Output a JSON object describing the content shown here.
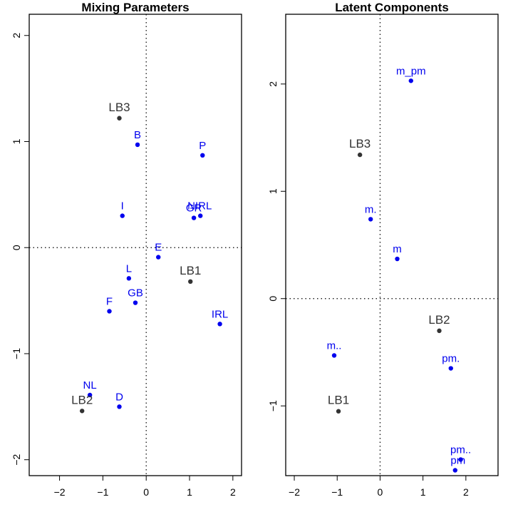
{
  "colors": {
    "variable_points": "#0000ee",
    "latent_points": "#333333"
  },
  "chart_data": [
    {
      "type": "scatter",
      "title": "Mixing Parameters",
      "xlim": [
        -2.7,
        2.2
      ],
      "ylim": [
        -2.15,
        2.2
      ],
      "xticks": [
        -2,
        -1,
        0,
        1,
        2
      ],
      "yticks": [
        -2,
        -1,
        0,
        1,
        2
      ],
      "reference_lines": {
        "x": 0,
        "y": 0,
        "style": "dotted"
      },
      "series": [
        {
          "color": "#0000ee",
          "points": [
            {
              "label": "B",
              "x": -0.2,
              "y": 0.97
            },
            {
              "label": "P",
              "x": 1.3,
              "y": 0.87
            },
            {
              "label": "I",
              "x": -0.55,
              "y": 0.3
            },
            {
              "label": "GR",
              "x": 1.1,
              "y": 0.28
            },
            {
              "label": "NIRL",
              "x": 1.25,
              "y": 0.3
            },
            {
              "label": "E",
              "x": 0.28,
              "y": -0.09
            },
            {
              "label": "L",
              "x": -0.4,
              "y": -0.29
            },
            {
              "label": "GB",
              "x": -0.25,
              "y": -0.52
            },
            {
              "label": "F",
              "x": -0.85,
              "y": -0.6
            },
            {
              "label": "IRL",
              "x": 1.7,
              "y": -0.72
            },
            {
              "label": "NL",
              "x": -1.3,
              "y": -1.39
            },
            {
              "label": "D",
              "x": -0.62,
              "y": -1.5
            }
          ]
        },
        {
          "color": "#333333",
          "points": [
            {
              "label": "LB3",
              "x": -0.62,
              "y": 1.22
            },
            {
              "label": "LB1",
              "x": 1.02,
              "y": -0.32
            },
            {
              "label": "LB2",
              "x": -1.48,
              "y": -1.54
            }
          ]
        }
      ]
    },
    {
      "type": "scatter",
      "title": "Latent Components",
      "xlim": [
        -2.2,
        2.75
      ],
      "ylim": [
        -1.65,
        2.65
      ],
      "xticks": [
        -2,
        -1,
        0,
        1,
        2
      ],
      "yticks": [
        -1,
        0,
        1,
        2
      ],
      "reference_lines": {
        "x": 0,
        "y": 0,
        "style": "dotted"
      },
      "series": [
        {
          "color": "#0000ee",
          "points": [
            {
              "label": "m_pm",
              "x": 0.72,
              "y": 2.03
            },
            {
              "label": "m.",
              "x": -0.22,
              "y": 0.74
            },
            {
              "label": "m",
              "x": 0.4,
              "y": 0.37
            },
            {
              "label": "m..",
              "x": -1.07,
              "y": -0.53
            },
            {
              "label": "pm.",
              "x": 1.65,
              "y": -0.65
            },
            {
              "label": "pm..",
              "x": 1.88,
              "y": -1.5
            },
            {
              "label": "pm",
              "x": 1.75,
              "y": -1.6
            }
          ]
        },
        {
          "color": "#333333",
          "points": [
            {
              "label": "LB3",
              "x": -0.47,
              "y": 1.34
            },
            {
              "label": "LB2",
              "x": 1.38,
              "y": -0.3
            },
            {
              "label": "LB1",
              "x": -0.97,
              "y": -1.05
            }
          ]
        }
      ]
    }
  ]
}
